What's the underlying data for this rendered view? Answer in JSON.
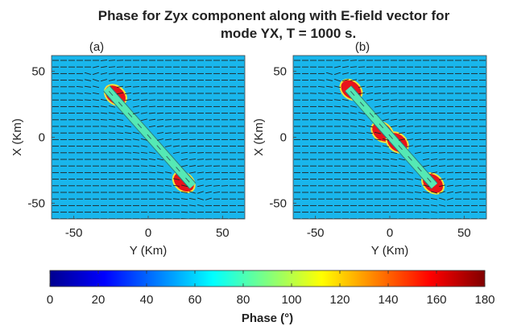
{
  "colors": {
    "background_phase": "#19b6ec",
    "anomaly_body": "#55e9b4",
    "high_phase": "#e8131b",
    "vector": "#222222"
  },
  "chart_data": [
    {
      "type": "heatmap",
      "title_lines": [
        "Phase for Zyx component along with E-field vector for",
        "mode YX, T = 1000 s."
      ],
      "panel_label": "(a)",
      "xlabel": "Y (Km)",
      "ylabel": "X (Km)",
      "xlim": [
        -65,
        65
      ],
      "ylim": [
        -62,
        62
      ],
      "xticks": [
        -50,
        0,
        50
      ],
      "yticks": [
        -50,
        0,
        50
      ],
      "background_phase_deg": 50,
      "body": {
        "from": [
          -28,
          37
        ],
        "to": [
          30,
          -37
        ],
        "width_km": 4,
        "phase_deg": 70
      },
      "hotspots": [
        {
          "y": -22,
          "x": 32,
          "phase_deg": 170
        },
        {
          "y": 24,
          "x": -34,
          "phase_deg": 170
        }
      ]
    },
    {
      "type": "heatmap",
      "panel_label": "(b)",
      "xlabel": "Y (Km)",
      "ylabel": "X (Km)",
      "xlim": [
        -65,
        65
      ],
      "ylim": [
        -62,
        62
      ],
      "xticks": [
        -50,
        0,
        50
      ],
      "yticks": [
        -50,
        0,
        50
      ],
      "background_phase_deg": 50,
      "body": {
        "from": [
          -28,
          37
        ],
        "to": [
          30,
          -37
        ],
        "width_km": 4,
        "phase_deg": 70
      },
      "hotspots": [
        {
          "y": -26,
          "x": 36,
          "phase_deg": 170
        },
        {
          "y": -5,
          "x": 4,
          "phase_deg": 170
        },
        {
          "y": 5,
          "x": -4,
          "phase_deg": 170
        },
        {
          "y": 29,
          "x": -35,
          "phase_deg": 170
        }
      ]
    },
    {
      "type": "colorbar",
      "label": "Phase (°)",
      "range": [
        0,
        180
      ],
      "ticks": [
        0,
        20,
        40,
        60,
        80,
        100,
        120,
        140,
        160,
        180
      ],
      "colormap": "jet"
    }
  ]
}
